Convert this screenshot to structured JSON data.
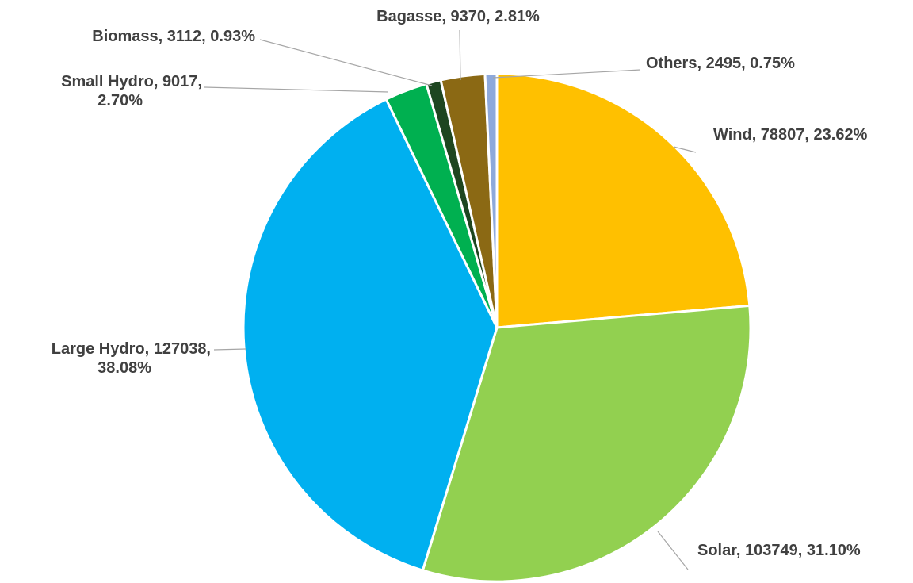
{
  "chart_data": {
    "type": "pie",
    "title": "",
    "start_angle_deg": 0,
    "direction": "clockwise",
    "slices": [
      {
        "name": "Wind",
        "value": 78807,
        "percent": "23.62%",
        "color": "#FFC000",
        "label_lines": [
          "Wind, 78807, 23.62%"
        ]
      },
      {
        "name": "Solar",
        "value": 103749,
        "percent": "31.10%",
        "color": "#92D050",
        "label_lines": [
          "Solar, 103749, 31.10%"
        ]
      },
      {
        "name": "Large Hydro",
        "value": 127038,
        "percent": "38.08%",
        "color": "#00B0F0",
        "label_lines": [
          "Large Hydro, 127038,",
          "38.08%"
        ]
      },
      {
        "name": "Small Hydro",
        "value": 9017,
        "percent": "2.70%",
        "color": "#00B050",
        "label_lines": [
          "Small Hydro, 9017,",
          "2.70%"
        ]
      },
      {
        "name": "Biomass",
        "value": 3112,
        "percent": "0.93%",
        "color": "#1E4620",
        "label_lines": [
          "Biomass, 3112, 0.93%"
        ]
      },
      {
        "name": "Bagasse",
        "value": 9370,
        "percent": "2.81%",
        "color": "#8B6914",
        "label_lines": [
          "Bagasse, 9370, 2.81%"
        ]
      },
      {
        "name": "Others",
        "value": 2495,
        "percent": "0.75%",
        "color": "#8EA9DB",
        "label_lines": [
          "Others, 2495, 0.75%"
        ]
      }
    ]
  }
}
